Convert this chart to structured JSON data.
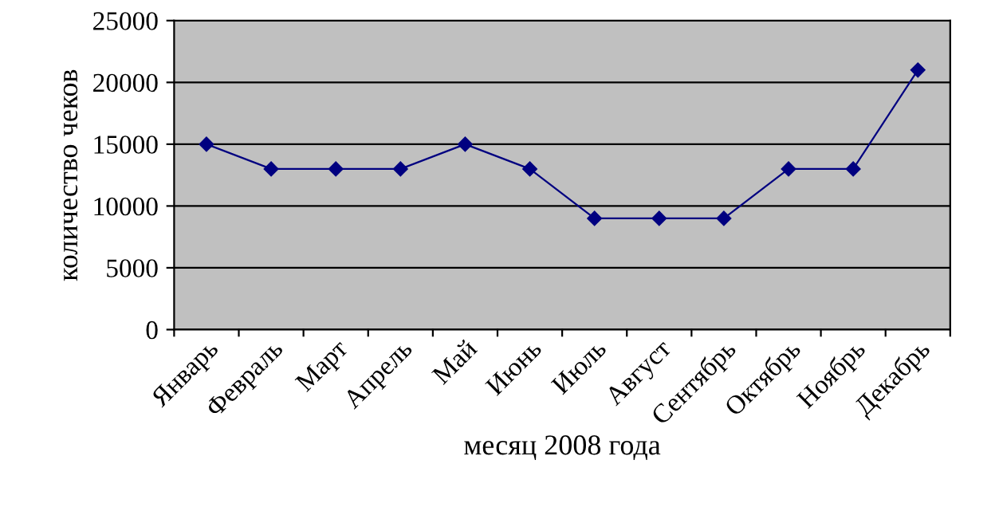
{
  "chart_data": {
    "type": "line",
    "xlabel": "месяц 2008 года",
    "ylabel": "количество чеков",
    "categories": [
      "Январь",
      "Февраль",
      "Март",
      "Апрель",
      "Май",
      "Июнь",
      "Июль",
      "Август",
      "Сентябрь",
      "Октябрь",
      "Ноябрь",
      "Декабрь"
    ],
    "series": [
      {
        "color": "#000080",
        "values": [
          15000,
          13000,
          13000,
          13000,
          15000,
          13000,
          9000,
          9000,
          9000,
          13000,
          13000,
          21000
        ]
      }
    ],
    "ylim": [
      0,
      25000
    ],
    "yticks": [
      0,
      5000,
      10000,
      15000,
      20000,
      25000
    ],
    "grid": "y",
    "marker": "diamond",
    "line_style": "solid",
    "legend": false
  }
}
